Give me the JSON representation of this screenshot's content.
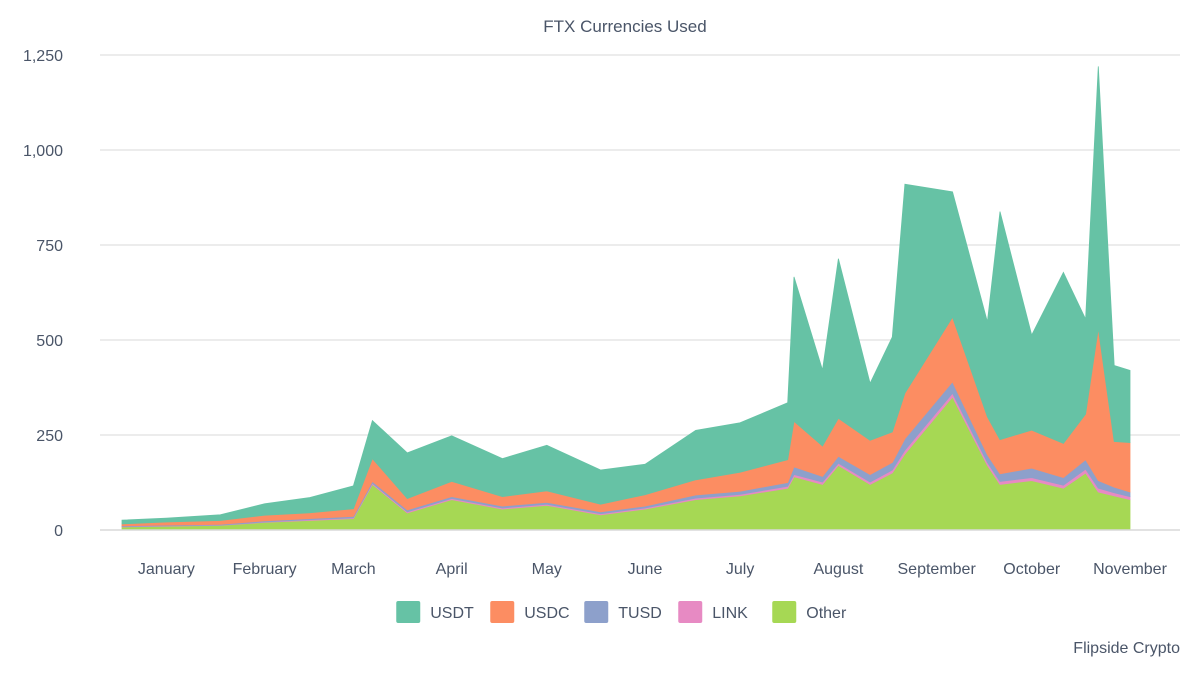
{
  "chart_data": {
    "type": "area",
    "stacked": true,
    "title": "FTX Currencies Used",
    "xlabel": "",
    "ylabel": "",
    "ylim": [
      0,
      1250
    ],
    "yticks": [
      0,
      250,
      500,
      750,
      1000,
      1250
    ],
    "ytick_labels": [
      "0",
      "250",
      "500",
      "750",
      "1,000",
      "1,250"
    ],
    "grid": true,
    "legend_position": "bottom-center",
    "credit": "Flipside Crypto",
    "x_tick_labels": [
      "January",
      "February",
      "March",
      "April",
      "May",
      "June",
      "July",
      "August",
      "September",
      "October",
      "November"
    ],
    "x_tick_positions": [
      "2022-01-15",
      "2022-02-15",
      "2022-03-15",
      "2022-04-15",
      "2022-05-15",
      "2022-06-15",
      "2022-07-15",
      "2022-08-15",
      "2022-09-15",
      "2022-10-15",
      "2022-11-15"
    ],
    "x": [
      "2022-01-01",
      "2022-01-15",
      "2022-02-01",
      "2022-02-15",
      "2022-03-01",
      "2022-03-15",
      "2022-03-21",
      "2022-04-01",
      "2022-04-15",
      "2022-05-01",
      "2022-05-15",
      "2022-06-01",
      "2022-06-15",
      "2022-07-01",
      "2022-07-15",
      "2022-07-30",
      "2022-08-01",
      "2022-08-10",
      "2022-08-15",
      "2022-08-25",
      "2022-09-01",
      "2022-09-05",
      "2022-09-20",
      "2022-10-01",
      "2022-10-05",
      "2022-10-15",
      "2022-10-25",
      "2022-11-01",
      "2022-11-05",
      "2022-11-10",
      "2022-11-15"
    ],
    "series": [
      {
        "name": "Other",
        "color": "#a6d854",
        "values": [
          8,
          10,
          12,
          20,
          25,
          30,
          120,
          45,
          80,
          55,
          65,
          40,
          55,
          80,
          90,
          110,
          140,
          120,
          170,
          120,
          150,
          200,
          350,
          170,
          120,
          130,
          110,
          150,
          100,
          90,
          80
        ]
      },
      {
        "name": "LINK",
        "color": "#e78ac3",
        "values": [
          1,
          1,
          1,
          1,
          2,
          2,
          3,
          3,
          3,
          3,
          3,
          3,
          3,
          4,
          4,
          5,
          6,
          6,
          6,
          6,
          8,
          10,
          10,
          8,
          8,
          8,
          8,
          10,
          10,
          8,
          8
        ]
      },
      {
        "name": "TUSD",
        "color": "#8da0cb",
        "values": [
          2,
          2,
          2,
          3,
          3,
          4,
          5,
          5,
          5,
          5,
          5,
          5,
          5,
          8,
          8,
          10,
          20,
          15,
          18,
          20,
          20,
          30,
          30,
          20,
          20,
          25,
          20,
          25,
          20,
          15,
          12
        ]
      },
      {
        "name": "USDC",
        "color": "#fc8d62",
        "values": [
          5,
          8,
          10,
          15,
          15,
          20,
          60,
          30,
          40,
          25,
          30,
          20,
          30,
          40,
          50,
          60,
          120,
          80,
          100,
          90,
          80,
          120,
          170,
          100,
          90,
          100,
          90,
          120,
          400,
          120,
          130
        ]
      },
      {
        "name": "USDT",
        "color": "#66c2a5",
        "values": [
          10,
          10,
          15,
          30,
          40,
          60,
          100,
          120,
          120,
          100,
          120,
          90,
          80,
          130,
          130,
          150,
          380,
          200,
          420,
          150,
          250,
          550,
          330,
          250,
          600,
          250,
          450,
          250,
          690,
          200,
          190
        ]
      }
    ]
  },
  "legend": {
    "items": [
      {
        "label": "USDT",
        "color": "#66c2a5"
      },
      {
        "label": "USDC",
        "color": "#fc8d62"
      },
      {
        "label": "TUSD",
        "color": "#8da0cb"
      },
      {
        "label": "LINK",
        "color": "#e78ac3"
      },
      {
        "label": "Other",
        "color": "#a6d854"
      }
    ]
  }
}
